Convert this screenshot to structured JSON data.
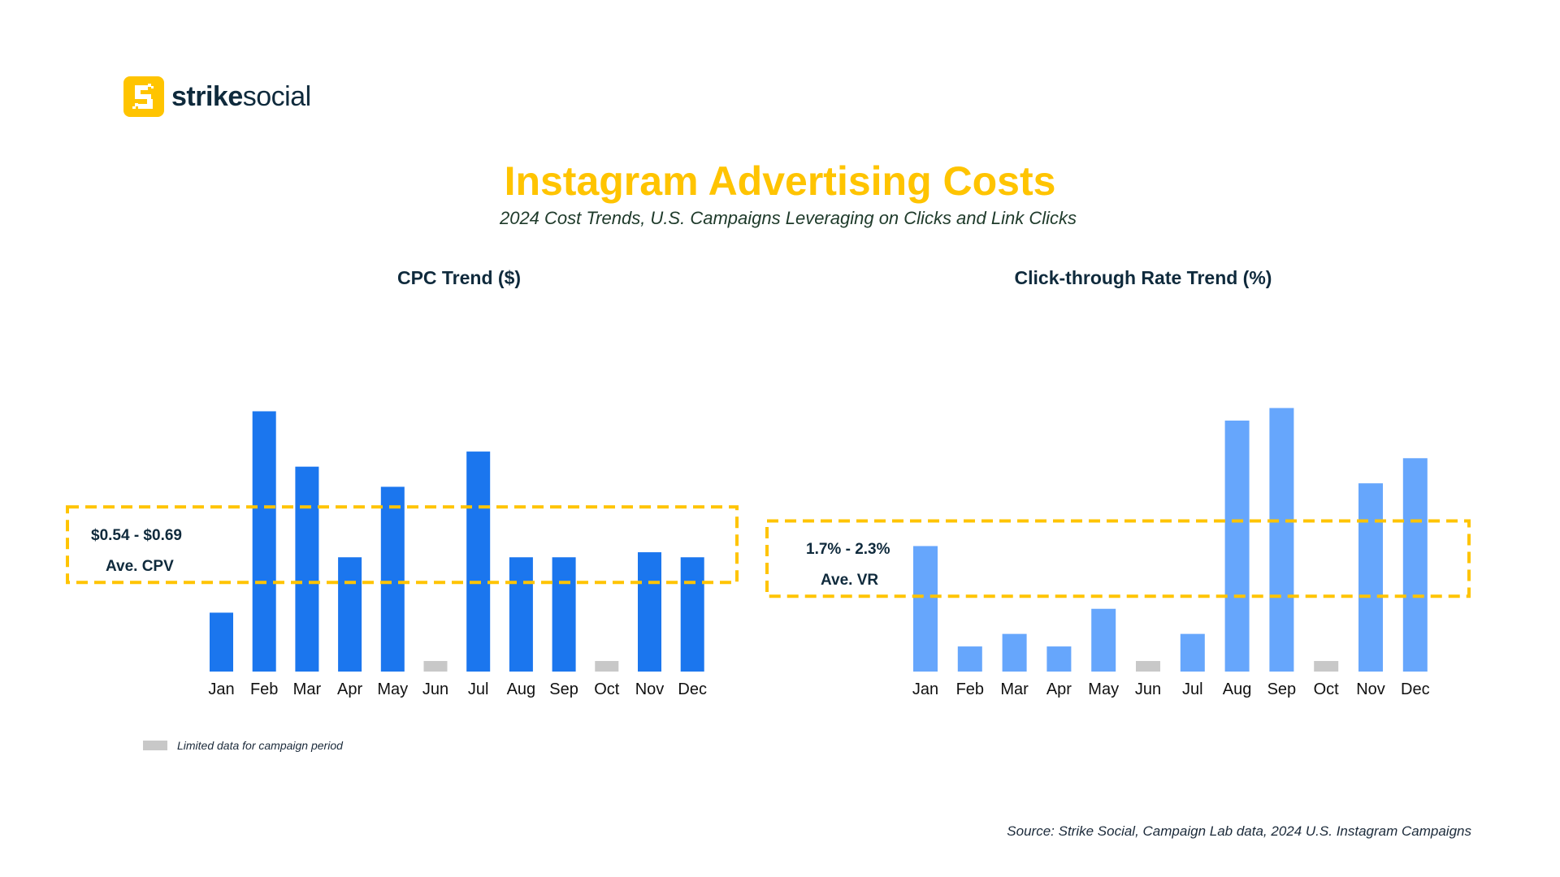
{
  "brand": {
    "name_bold": "strike",
    "name_light": "social",
    "logo_icon": "strike-social-s-logo",
    "accent_color": "#FFC400"
  },
  "header": {
    "title": "Instagram Advertising Costs",
    "subtitle": "2024 Cost Trends, U.S. Campaigns Leveraging on Clicks and Link Clicks"
  },
  "legend": {
    "limited_label": "Limited data for campaign period",
    "limited_color": "#C8C8C8"
  },
  "source": "Source: Strike Social, Campaign Lab data, 2024 U.S. Instagram Campaigns",
  "chart_data": [
    {
      "type": "bar",
      "title": "CPC Trend ($)",
      "xlabel": "",
      "ylabel": "",
      "categories": [
        "Jan",
        "Feb",
        "Mar",
        "Apr",
        "May",
        "Jun",
        "Jul",
        "Aug",
        "Sep",
        "Oct",
        "Nov",
        "Dec"
      ],
      "values": [
        0.48,
        0.88,
        0.77,
        0.59,
        0.73,
        null,
        0.8,
        0.59,
        0.59,
        null,
        0.6,
        0.59
      ],
      "limited_data": [
        false,
        false,
        false,
        false,
        false,
        true,
        false,
        false,
        false,
        true,
        false,
        false
      ],
      "ylim": [
        0.363,
        0.884
      ],
      "bar_color": "#1B76EE",
      "grid": false,
      "range_band": {
        "low": 0.54,
        "high": 0.69,
        "label_range": "$0.54 - $0.69",
        "label_caption": "Ave. CPV",
        "color": "#FFC400"
      }
    },
    {
      "type": "bar",
      "title": "Click-through Rate Trend (%)",
      "xlabel": "",
      "ylabel": "",
      "categories": [
        "Jan",
        "Feb",
        "Mar",
        "Apr",
        "May",
        "Jun",
        "Jul",
        "Aug",
        "Sep",
        "Oct",
        "Nov",
        "Dec"
      ],
      "values": [
        2.1,
        1.3,
        1.4,
        1.3,
        1.6,
        null,
        1.4,
        3.1,
        3.2,
        null,
        2.6,
        2.8
      ],
      "limited_data": [
        false,
        false,
        false,
        false,
        false,
        true,
        false,
        false,
        false,
        true,
        false,
        false
      ],
      "ylim": [
        1.1,
        3.19
      ],
      "bar_color": "#66A6FC",
      "grid": false,
      "range_band": {
        "low": 1.7,
        "high": 2.3,
        "label_range": "1.7% - 2.3%",
        "label_caption": "Ave. VR",
        "color": "#FFC400"
      }
    }
  ]
}
